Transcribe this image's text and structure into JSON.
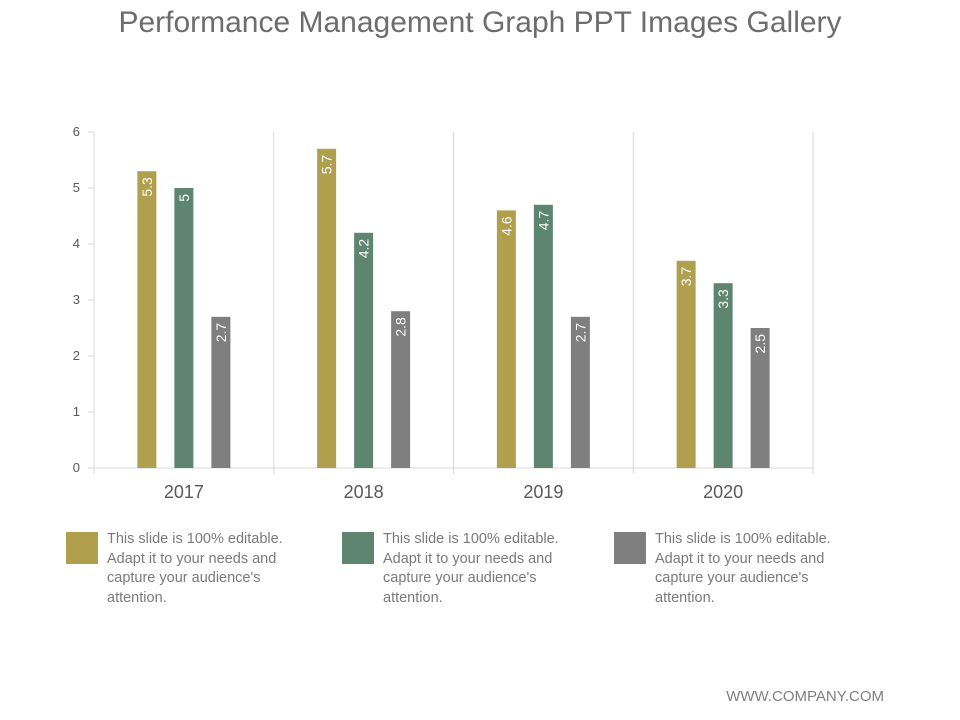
{
  "title": "Performance Management Graph PPT Images Gallery",
  "footer": "WWW.COMPANY.COM",
  "colors": {
    "series1": "#b09f4d",
    "series2": "#5d8570",
    "series3": "#7f7f7f",
    "grid": "#d9d9d9",
    "axis_text": "#595959"
  },
  "chart_data": {
    "type": "bar",
    "categories": [
      "2017",
      "2018",
      "2019",
      "2020"
    ],
    "series": [
      {
        "values": [
          5.3,
          5.7,
          4.6,
          3.7
        ],
        "labels": [
          "5.3",
          "5.7",
          "4.6",
          "3.7"
        ]
      },
      {
        "values": [
          5.0,
          4.2,
          4.7,
          3.3
        ],
        "labels": [
          "5",
          "4.2",
          "4.7",
          "3.3"
        ]
      },
      {
        "values": [
          2.7,
          2.8,
          2.7,
          2.5
        ],
        "labels": [
          "2.7",
          "2.8",
          "2.7",
          "2.5"
        ]
      }
    ],
    "ylim": [
      0,
      6
    ],
    "yticks": [
      "0",
      "1",
      "2",
      "3",
      "4",
      "5",
      "6"
    ],
    "grid": true,
    "data_label_orientation": "vertical"
  },
  "legend": [
    {
      "text": "This slide is 100% editable. Adapt it to your needs and capture your audience's attention."
    },
    {
      "text": "This slide is 100% editable. Adapt it to your needs and capture your audience's attention."
    },
    {
      "text": "This slide is 100% editable. Adapt it to your needs and capture your audience's attention."
    }
  ]
}
